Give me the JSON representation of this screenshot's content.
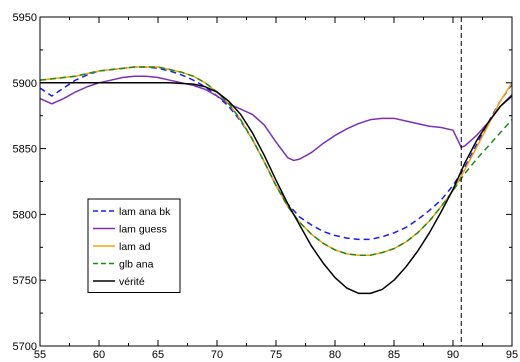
{
  "chart_data": {
    "type": "line",
    "title": "",
    "xlabel": "",
    "ylabel": "",
    "xlim": [
      55,
      95
    ],
    "ylim": [
      5700,
      5950
    ],
    "x_ticks": [
      55,
      60,
      65,
      70,
      75,
      80,
      85,
      90,
      95
    ],
    "y_ticks": [
      5700,
      5750,
      5800,
      5850,
      5900,
      5950
    ],
    "grid": false,
    "legend_position": "lower-left",
    "annotations": [
      {
        "type": "vertical-dashed-line",
        "x": 90.7
      }
    ],
    "series": [
      {
        "name": "lam ana bk",
        "color": "#1a1aff",
        "dash": "dashed",
        "points": [
          [
            55,
            5896
          ],
          [
            56,
            5890
          ],
          [
            57,
            5896
          ],
          [
            58,
            5902
          ],
          [
            59,
            5906
          ],
          [
            60,
            5909
          ],
          [
            61,
            5910
          ],
          [
            62,
            5911
          ],
          [
            63,
            5912
          ],
          [
            64,
            5912
          ],
          [
            65,
            5911
          ],
          [
            66,
            5909
          ],
          [
            67,
            5906
          ],
          [
            68,
            5902
          ],
          [
            69,
            5897
          ],
          [
            70,
            5890
          ],
          [
            71,
            5882
          ],
          [
            72,
            5871
          ],
          [
            73,
            5857
          ],
          [
            74,
            5840
          ],
          [
            75,
            5822
          ],
          [
            76,
            5808
          ],
          [
            77,
            5798
          ],
          [
            78,
            5792
          ],
          [
            79,
            5787
          ],
          [
            80,
            5784
          ],
          [
            81,
            5782
          ],
          [
            82,
            5781
          ],
          [
            83,
            5781
          ],
          [
            84,
            5783
          ],
          [
            85,
            5786
          ],
          [
            86,
            5790
          ],
          [
            87,
            5796
          ],
          [
            88,
            5803
          ],
          [
            89,
            5811
          ],
          [
            90,
            5822
          ],
          [
            91,
            5836
          ],
          [
            92,
            5853
          ],
          [
            93,
            5870
          ],
          [
            94,
            5886
          ],
          [
            95,
            5899
          ]
        ]
      },
      {
        "name": "lam guess",
        "color": "#7b2fbe",
        "dash": "solid",
        "points": [
          [
            55,
            5888
          ],
          [
            56,
            5884
          ],
          [
            57,
            5888
          ],
          [
            58,
            5893
          ],
          [
            59,
            5897
          ],
          [
            60,
            5900
          ],
          [
            61,
            5902
          ],
          [
            62,
            5904
          ],
          [
            63,
            5905
          ],
          [
            64,
            5905
          ],
          [
            65,
            5904
          ],
          [
            66,
            5902
          ],
          [
            67,
            5900
          ],
          [
            68,
            5898
          ],
          [
            69,
            5895
          ],
          [
            70,
            5890
          ],
          [
            71,
            5884
          ],
          [
            72,
            5880
          ],
          [
            73,
            5876
          ],
          [
            74,
            5868
          ],
          [
            75,
            5855
          ],
          [
            76,
            5843
          ],
          [
            76.5,
            5841
          ],
          [
            77,
            5842
          ],
          [
            78,
            5847
          ],
          [
            79,
            5854
          ],
          [
            80,
            5860
          ],
          [
            81,
            5865
          ],
          [
            82,
            5869
          ],
          [
            83,
            5872
          ],
          [
            84,
            5873
          ],
          [
            85,
            5873
          ],
          [
            86,
            5871
          ],
          [
            87,
            5869
          ],
          [
            88,
            5867
          ],
          [
            89,
            5866
          ],
          [
            90,
            5864
          ],
          [
            90.7,
            5851
          ],
          [
            91,
            5852
          ],
          [
            92,
            5860
          ],
          [
            93,
            5870
          ],
          [
            94,
            5882
          ],
          [
            95,
            5891
          ]
        ]
      },
      {
        "name": "lam ad",
        "color": "#f5a300",
        "dash": "solid",
        "points": [
          [
            55,
            5902
          ],
          [
            56,
            5903
          ],
          [
            57,
            5904
          ],
          [
            58,
            5905
          ],
          [
            59,
            5907
          ],
          [
            60,
            5909
          ],
          [
            61,
            5910
          ],
          [
            62,
            5911
          ],
          [
            63,
            5912
          ],
          [
            64,
            5912
          ],
          [
            65,
            5912
          ],
          [
            66,
            5910
          ],
          [
            67,
            5908
          ],
          [
            68,
            5905
          ],
          [
            69,
            5900
          ],
          [
            70,
            5893
          ],
          [
            71,
            5884
          ],
          [
            72,
            5872
          ],
          [
            73,
            5857
          ],
          [
            74,
            5840
          ],
          [
            75,
            5822
          ],
          [
            76,
            5806
          ],
          [
            77,
            5794
          ],
          [
            78,
            5785
          ],
          [
            79,
            5778
          ],
          [
            80,
            5773
          ],
          [
            81,
            5770
          ],
          [
            82,
            5769
          ],
          [
            83,
            5769
          ],
          [
            84,
            5771
          ],
          [
            85,
            5774
          ],
          [
            86,
            5779
          ],
          [
            87,
            5786
          ],
          [
            88,
            5795
          ],
          [
            89,
            5806
          ],
          [
            90,
            5818
          ],
          [
            91,
            5834
          ],
          [
            92,
            5851
          ],
          [
            93,
            5868
          ],
          [
            94,
            5886
          ],
          [
            95,
            5900
          ]
        ]
      },
      {
        "name": "glb ana",
        "color": "#1a8c1a",
        "dash": "dashed",
        "points": [
          [
            55,
            5902
          ],
          [
            56,
            5903
          ],
          [
            57,
            5904
          ],
          [
            58,
            5905
          ],
          [
            59,
            5907
          ],
          [
            60,
            5909
          ],
          [
            61,
            5910
          ],
          [
            62,
            5911
          ],
          [
            63,
            5912
          ],
          [
            64,
            5912
          ],
          [
            65,
            5912
          ],
          [
            66,
            5910
          ],
          [
            67,
            5908
          ],
          [
            68,
            5905
          ],
          [
            69,
            5900
          ],
          [
            70,
            5893
          ],
          [
            71,
            5884
          ],
          [
            72,
            5872
          ],
          [
            73,
            5857
          ],
          [
            74,
            5840
          ],
          [
            75,
            5822
          ],
          [
            76,
            5806
          ],
          [
            77,
            5794
          ],
          [
            78,
            5785
          ],
          [
            79,
            5778
          ],
          [
            80,
            5773
          ],
          [
            81,
            5770
          ],
          [
            82,
            5769
          ],
          [
            83,
            5769
          ],
          [
            84,
            5771
          ],
          [
            85,
            5774
          ],
          [
            86,
            5779
          ],
          [
            87,
            5786
          ],
          [
            88,
            5795
          ],
          [
            89,
            5806
          ],
          [
            90,
            5818
          ],
          [
            91,
            5831
          ],
          [
            92,
            5842
          ],
          [
            93,
            5852
          ],
          [
            94,
            5862
          ],
          [
            95,
            5872
          ]
        ]
      },
      {
        "name": "vérité",
        "color": "#000000",
        "dash": "solid",
        "points": [
          [
            55,
            5900
          ],
          [
            58,
            5900
          ],
          [
            62,
            5900
          ],
          [
            66,
            5900
          ],
          [
            68,
            5899
          ],
          [
            69,
            5897
          ],
          [
            70,
            5893
          ],
          [
            71,
            5886
          ],
          [
            72,
            5876
          ],
          [
            73,
            5862
          ],
          [
            74,
            5845
          ],
          [
            75,
            5826
          ],
          [
            76,
            5808
          ],
          [
            77,
            5792
          ],
          [
            78,
            5776
          ],
          [
            79,
            5763
          ],
          [
            80,
            5752
          ],
          [
            81,
            5744
          ],
          [
            82,
            5740
          ],
          [
            83,
            5740
          ],
          [
            84,
            5743
          ],
          [
            85,
            5750
          ],
          [
            86,
            5760
          ],
          [
            87,
            5772
          ],
          [
            88,
            5786
          ],
          [
            89,
            5802
          ],
          [
            90,
            5819
          ],
          [
            91,
            5839
          ],
          [
            92,
            5856
          ],
          [
            93,
            5870
          ],
          [
            94,
            5882
          ],
          [
            95,
            5890
          ]
        ]
      }
    ]
  }
}
